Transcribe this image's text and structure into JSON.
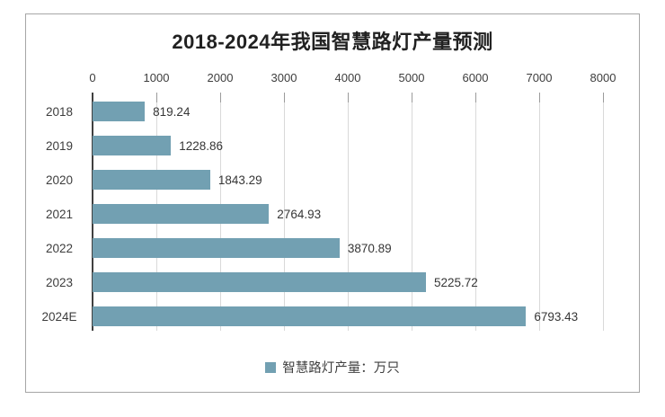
{
  "chart_data": {
    "type": "bar",
    "orientation": "horizontal",
    "title": "2018-2024年我国智慧路灯产量预测",
    "categories": [
      "2018",
      "2019",
      "2020",
      "2021",
      "2022",
      "2023",
      "2024E"
    ],
    "values": [
      819.24,
      1228.86,
      1843.29,
      2764.93,
      3870.89,
      5225.72,
      6793.43
    ],
    "value_labels": [
      "819.24",
      "1228.86",
      "1843.29",
      "2764.93",
      "3870.89",
      "5225.72",
      "6793.43"
    ],
    "legend_label": "智慧路灯产量：万只",
    "legend_position": "bottom-center",
    "axis_position": "top",
    "xlim": [
      0,
      8000
    ],
    "xtick_values": [
      0,
      1000,
      2000,
      3000,
      4000,
      5000,
      6000,
      7000,
      8000
    ],
    "xtick_labels": [
      "0",
      "1000",
      "2000",
      "3000",
      "4000",
      "5000",
      "6000",
      "7000",
      "8000"
    ],
    "grid": true,
    "value_labels_shown": true,
    "colors": {
      "bar": "#72a0b2",
      "legend_marker": "#72a0b2",
      "title_text": "#212121",
      "axis_text": "#3d3d3d",
      "gridline": "#d9d9d9",
      "axis_line": "#404040",
      "frame_border": "#a6a6a6"
    }
  }
}
